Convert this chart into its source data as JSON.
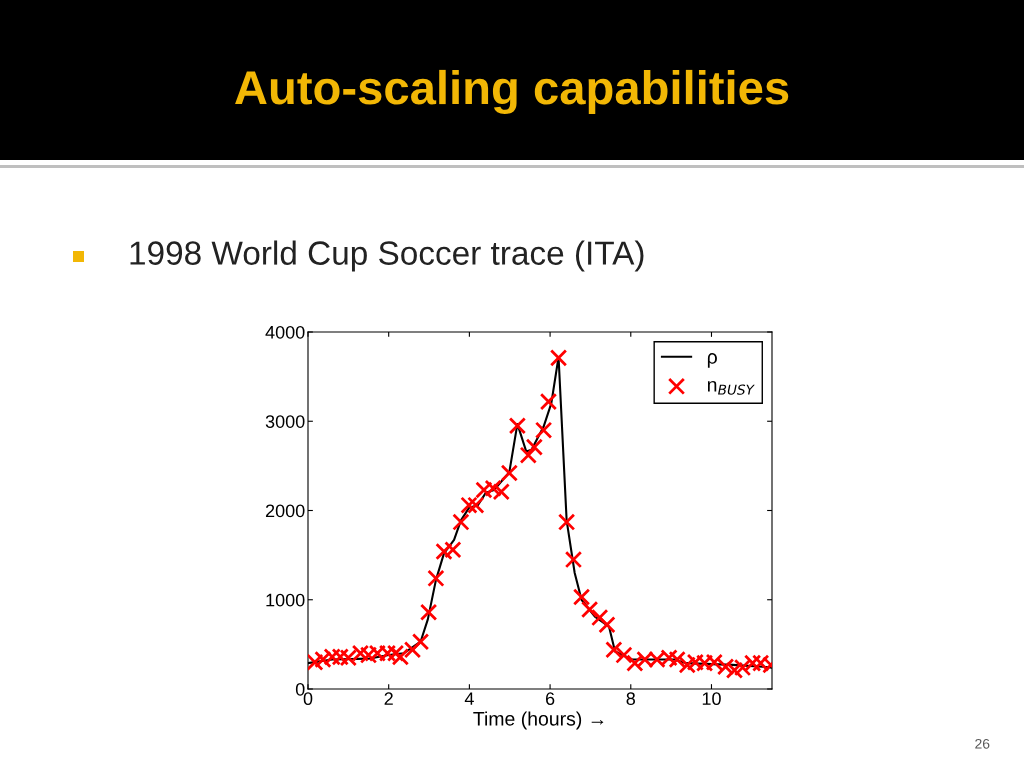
{
  "chart_data": {
    "type": "line",
    "title": "Auto-scaling capabilities",
    "subtitle": "1998 World Cup Soccer trace (ITA)",
    "xlabel": "Time (hours) →",
    "annotations": [
      "26"
    ],
    "xlim": [
      0,
      11.5
    ],
    "xticks": [
      0,
      2,
      4,
      6,
      8,
      10
    ],
    "ylim": [
      0,
      4000
    ],
    "yticks": [
      0,
      1000,
      2000,
      3000,
      4000
    ],
    "grid": false,
    "legend": "top right",
    "series": [
      {
        "name": "ρ",
        "color": "#000000",
        "line_style": "solid",
        "marker": "none",
        "x": [
          0.0,
          0.6,
          1.5,
          2.0,
          2.37,
          2.79,
          2.97,
          3.17,
          3.37,
          3.62,
          3.79,
          3.99,
          4.21,
          4.41,
          4.61,
          4.99,
          5.19,
          5.41,
          5.54,
          5.84,
          6.03,
          6.21,
          6.41,
          6.61,
          6.78,
          7.11,
          7.46,
          7.61,
          8.03,
          9.1,
          9.35,
          10.52,
          11.27,
          11.5
        ],
        "values": [
          290,
          330,
          340,
          380,
          400,
          530,
          780,
          1220,
          1520,
          1670,
          1890,
          2030,
          2060,
          2200,
          2230,
          2430,
          2970,
          2660,
          2680,
          2940,
          3200,
          3720,
          1890,
          1300,
          1000,
          810,
          700,
          420,
          330,
          330,
          290,
          270,
          250,
          240
        ]
      },
      {
        "name": "n$_{BUSY}$",
        "type": "scatter",
        "color": "#ff0000",
        "marker": "cross",
        "x": [
          0.17,
          0.37,
          0.6,
          0.8,
          1.0,
          1.3,
          1.5,
          1.72,
          1.97,
          2.17,
          2.29,
          2.59,
          2.79,
          2.99,
          3.17,
          3.37,
          3.59,
          3.79,
          3.99,
          4.16,
          4.36,
          4.59,
          4.79,
          4.99,
          5.19,
          5.46,
          5.61,
          5.84,
          5.96,
          6.21,
          6.41,
          6.58,
          6.78,
          6.98,
          7.23,
          7.41,
          7.58,
          7.83,
          8.1,
          8.35,
          8.65,
          8.95,
          9.15,
          9.4,
          9.6,
          9.83,
          10.07,
          10.35,
          10.57,
          10.77,
          11.02,
          11.22,
          11.47
        ],
        "values": [
          300,
          330,
          360,
          360,
          350,
          400,
          380,
          400,
          400,
          400,
          360,
          440,
          530,
          860,
          1240,
          1540,
          1560,
          1870,
          2060,
          2060,
          2230,
          2250,
          2210,
          2420,
          2950,
          2620,
          2710,
          2900,
          3220,
          3710,
          1870,
          1450,
          1030,
          890,
          800,
          720,
          440,
          380,
          290,
          330,
          330,
          350,
          330,
          270,
          300,
          290,
          300,
          250,
          210,
          240,
          290,
          290,
          270
        ]
      }
    ]
  }
}
